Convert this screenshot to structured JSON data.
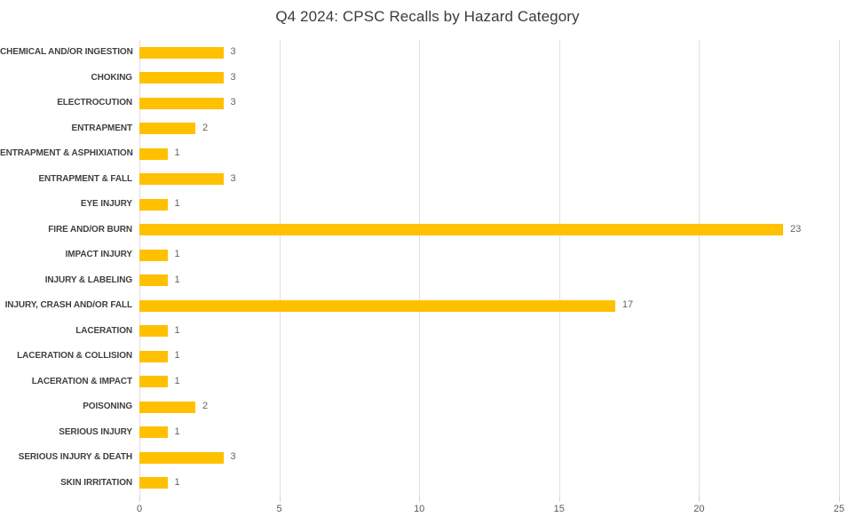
{
  "title": "Q4 2024: CPSC Recalls by Hazard Category",
  "colors": {
    "bar": "#FFC000",
    "gridline": "#e9dbde",
    "category_label": "#3f3f3f",
    "value_label": "#6e5f5f",
    "axis_label": "#595959",
    "title": "#3b3b3b",
    "background": "#ffffff"
  },
  "chart_data": {
    "type": "bar",
    "orientation": "horizontal",
    "title": "Q4 2024: CPSC Recalls by Hazard Category",
    "xlabel": "",
    "ylabel": "",
    "xlim": [
      0,
      25
    ],
    "xticks": [
      0,
      5,
      10,
      15,
      20,
      25
    ],
    "grid": "vertical-only",
    "legend_position": "none",
    "data_labels_shown": true,
    "categories": [
      "CHEMICAL AND/OR INGESTION",
      "CHOKING",
      "ELECTROCUTION",
      "ENTRAPMENT",
      "ENTRAPMENT & ASPHIXIATION",
      "ENTRAPMENT & FALL",
      "EYE INJURY",
      "FIRE AND/OR BURN",
      "IMPACT INJURY",
      "INJURY & LABELING",
      "INJURY, CRASH AND/OR FALL",
      "LACERATION",
      "LACERATION & COLLISION",
      "LACERATION & IMPACT",
      "POISONING",
      "SERIOUS INJURY",
      "SERIOUS INJURY & DEATH",
      "SKIN IRRITATION"
    ],
    "values": [
      3,
      3,
      3,
      2,
      1,
      3,
      1,
      23,
      1,
      1,
      17,
      1,
      1,
      1,
      2,
      1,
      3,
      1
    ]
  }
}
